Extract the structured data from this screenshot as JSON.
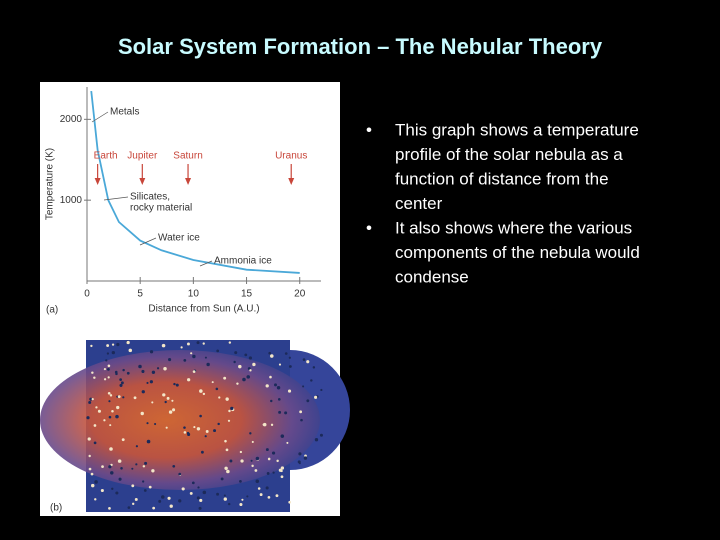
{
  "slide": {
    "title": "Solar System Formation – The Nebular Theory",
    "bullets": [
      [
        "This graph shows a temperature",
        "profile of the solar nebula as a",
        "function of distance from the",
        "center"
      ],
      [
        "It also shows where the various",
        "components of the nebula would",
        "condense"
      ]
    ],
    "bullet_symbol": "•",
    "panel_b_label": "(b)"
  },
  "chart_data": {
    "type": "line",
    "panel_label": "(a)",
    "x_label": "Distance from Sun (A.U.)",
    "y_label": "Temperature (K)",
    "x": [
      0.4,
      1,
      2,
      3,
      5,
      7,
      10,
      15,
      20
    ],
    "series": [
      {
        "color": "#4aa8d8",
        "values": [
          2350,
          1620,
          1000,
          730,
          500,
          380,
          260,
          140,
          100
        ]
      }
    ],
    "xlim": [
      0,
      22
    ],
    "xticks": [
      0,
      5,
      10,
      15,
      20
    ],
    "ylim": [
      0,
      2400
    ],
    "yticks": [
      1000,
      2000
    ],
    "annotations": [
      "Metals",
      "Silicates,",
      "rocky material",
      "Water ice",
      "Ammonia ice"
    ],
    "planets": [
      {
        "label": "Earth",
        "x": 1
      },
      {
        "label": "Jupiter",
        "x": 5.2
      },
      {
        "label": "Saturn",
        "x": 9.5
      },
      {
        "label": "Uranus",
        "x": 19.2
      }
    ],
    "planet_color": "#c8463a"
  }
}
